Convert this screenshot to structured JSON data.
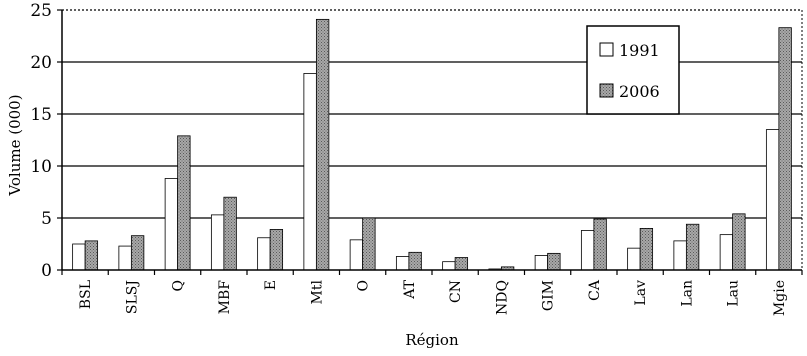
{
  "chart_data": {
    "type": "bar",
    "title": "",
    "xlabel": "Région",
    "ylabel": "Volume (000)",
    "ylim": [
      0,
      25
    ],
    "yticks": [
      0,
      5,
      10,
      15,
      20,
      25
    ],
    "grid": true,
    "legend_position": "top-right",
    "categories": [
      "BSL",
      "SLSJ",
      "Q",
      "MBF",
      "E",
      "Mtl",
      "O",
      "AT",
      "CN",
      "NDQ",
      "GIM",
      "CA",
      "Lav",
      "Lan",
      "Lau",
      "Mgie"
    ],
    "series": [
      {
        "name": "1991",
        "values": [
          2.5,
          2.3,
          8.8,
          5.3,
          3.1,
          18.9,
          2.9,
          1.3,
          0.8,
          0.1,
          1.4,
          3.8,
          2.1,
          2.8,
          3.4,
          13.5
        ],
        "color": "#ffffff"
      },
      {
        "name": "2006",
        "values": [
          2.8,
          3.3,
          12.9,
          7.0,
          3.9,
          24.1,
          5.0,
          1.7,
          1.2,
          0.3,
          1.6,
          4.9,
          4.0,
          4.4,
          5.4,
          23.3
        ],
        "color": "#9a9a9a"
      }
    ]
  }
}
